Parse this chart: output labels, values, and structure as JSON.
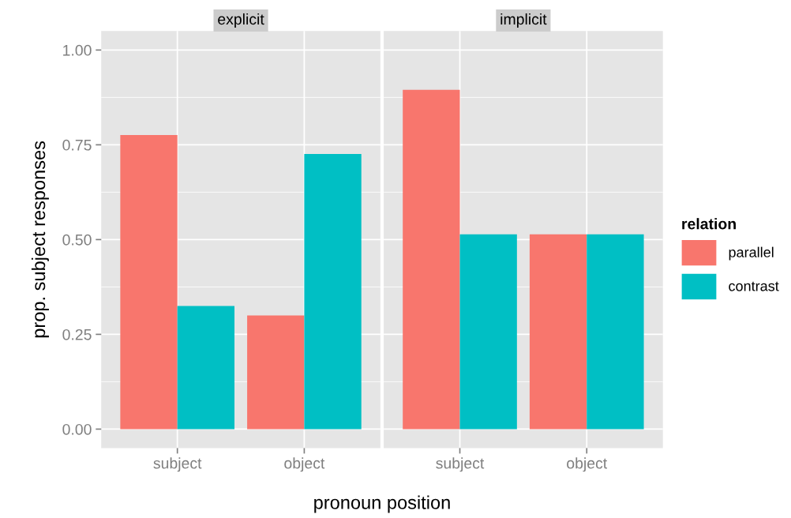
{
  "chart_data": [
    {
      "type": "bar",
      "title": "explicit",
      "xlabel": "pronoun position",
      "ylabel": "prop. subject responses",
      "categories": [
        "subject",
        "object"
      ],
      "series": [
        {
          "name": "parallel",
          "color": "#f8766d",
          "values": [
            0.776,
            0.3
          ]
        },
        {
          "name": "contrast",
          "color": "#00bfc4",
          "values": [
            0.325,
            0.726
          ]
        }
      ],
      "ylim": [
        -0.05,
        1.05
      ],
      "yticks": [
        {
          "value": 0,
          "label": "0.00"
        },
        {
          "value": 0.25,
          "label": "0.25"
        },
        {
          "value": 0.5,
          "label": "0.50"
        },
        {
          "value": 0.75,
          "label": "0.75"
        },
        {
          "value": 1,
          "label": "1.00"
        }
      ],
      "grid": true,
      "legend": "right",
      "legend_title": "relation"
    },
    {
      "type": "bar",
      "title": "implicit",
      "categories": [
        "subject",
        "object"
      ],
      "series": [
        {
          "color": "#f8766d",
          "values": [
            0.895,
            0.514
          ]
        },
        {
          "color": "#00bfc4",
          "values": [
            0.514,
            0.514
          ]
        }
      ],
      "ylim": [
        -0.05,
        1.05
      ],
      "grid": true,
      "tick_labels": "x"
    }
  ]
}
